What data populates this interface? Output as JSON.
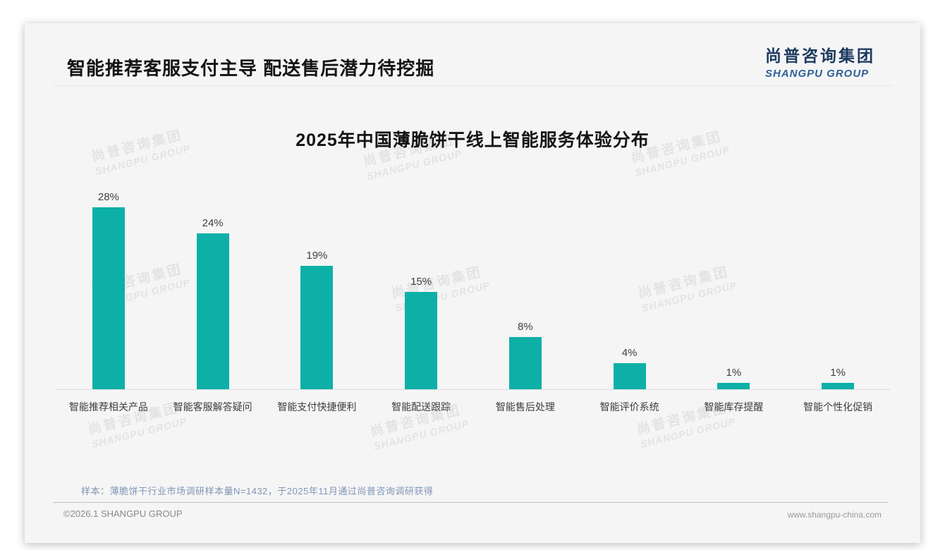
{
  "header": {
    "title": "智能推荐客服支付主导 配送售后潜力待挖掘",
    "logo": {
      "cn": "尚普咨询集团",
      "en": "SHANGPU GROUP",
      "cn_color": "#1d3a5e",
      "en_color": "#2e6096"
    }
  },
  "watermark": {
    "cn": "尚普咨询集团",
    "en": "SHANGPU GROUP"
  },
  "chart_data": {
    "type": "bar",
    "title": "2025年中国薄脆饼干线上智能服务体验分布",
    "categories": [
      "智能推荐相关产品",
      "智能客服解答疑问",
      "智能支付快捷便利",
      "智能配送跟踪",
      "智能售后处理",
      "智能评价系统",
      "智能库存提醒",
      "智能个性化促销"
    ],
    "values": [
      28,
      24,
      19,
      15,
      8,
      4,
      1,
      1
    ],
    "unit": "%",
    "xlabel": "",
    "ylabel": "",
    "ylim": [
      0,
      30
    ],
    "grid": false,
    "legend": "none",
    "bar_color": "#0db0a6",
    "value_label_color": "#404040",
    "axis_line_color": "#dadada"
  },
  "footnote": "样本：薄脆饼干行业市场调研样本量N=1432，于2025年11月通过尚普咨询调研获得",
  "footer": {
    "copyright": "©2026.1 SHANGPU GROUP",
    "website": "www.shangpu-china.com"
  }
}
